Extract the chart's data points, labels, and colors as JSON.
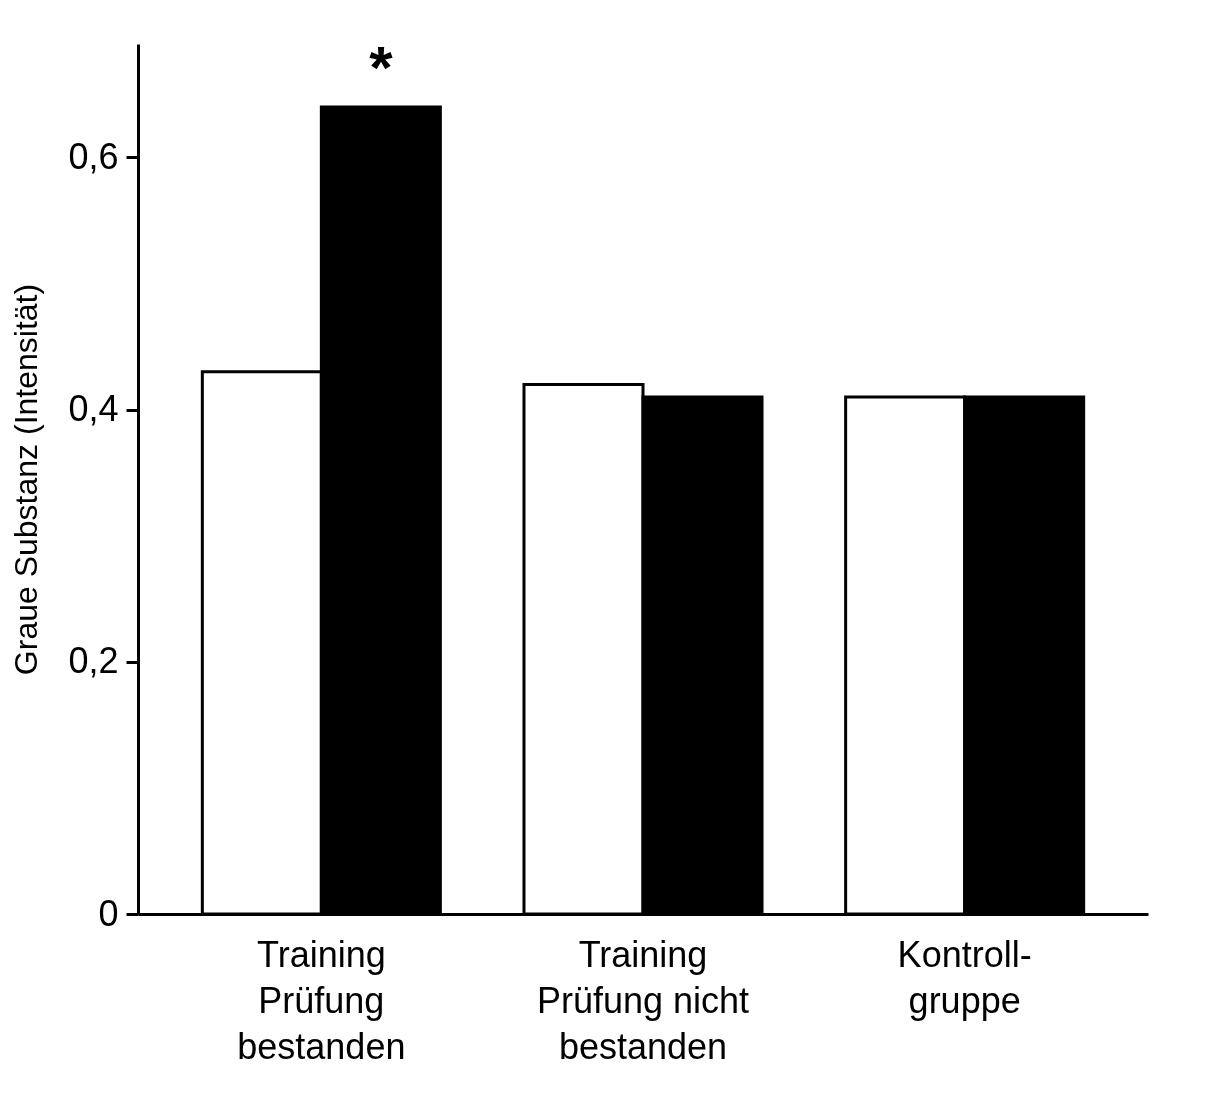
{
  "chart_data": {
    "type": "bar",
    "ylabel": "Graue Substanz (Intensität)",
    "categories": [
      "Training\nPrüfung\nbestanden",
      "Training\nPrüfung nicht\nbestanden",
      "Kontroll-\ngruppe"
    ],
    "series": [
      {
        "color": "#ffffff",
        "values": [
          0.43,
          0.42,
          0.41
        ]
      },
      {
        "color": "#000000",
        "values": [
          0.64,
          0.41,
          0.41
        ]
      }
    ],
    "ylim": [
      0,
      0.69
    ],
    "yticks": [
      0,
      {
        "value": 0.2,
        "label": "0,2"
      },
      {
        "value": 0.4,
        "label": "0,4"
      },
      {
        "value": 0.6,
        "label": "0,6"
      }
    ],
    "grid": false,
    "legend": false,
    "annotations": [
      {
        "text": "*",
        "x": "Training\nPrüfung\nbestanden",
        "y": 0.64
      }
    ]
  }
}
